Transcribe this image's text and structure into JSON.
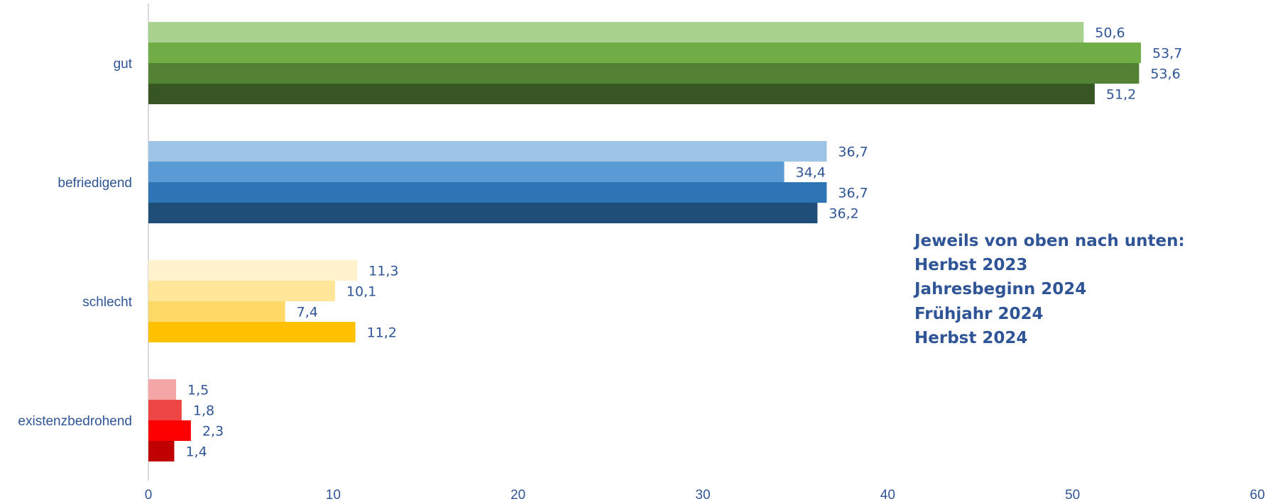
{
  "chart_data": {
    "type": "bar",
    "orientation": "horizontal",
    "categories": [
      "gut",
      "befriedigend",
      "schlecht",
      "existenzbedrohend"
    ],
    "series": [
      {
        "name": "Herbst 2023",
        "values": [
          50.6,
          36.7,
          11.3,
          1.5
        ]
      },
      {
        "name": "Jahresbeginn 2024",
        "values": [
          53.7,
          34.4,
          10.1,
          1.8
        ]
      },
      {
        "name": "Frühjahr 2024",
        "values": [
          53.6,
          36.7,
          7.4,
          2.3
        ]
      },
      {
        "name": "Herbst 2024",
        "values": [
          51.2,
          36.2,
          11.2,
          1.4
        ]
      }
    ],
    "value_labels": [
      [
        "50,6",
        "53,7",
        "53,6",
        "51,2"
      ],
      [
        "36,7",
        "34,4",
        "36,7",
        "36,2"
      ],
      [
        "11,3",
        "10,1",
        "7,4",
        "11,2"
      ],
      [
        "1,5",
        "1,8",
        "2,3",
        "1,4"
      ]
    ],
    "colors": [
      [
        "#A9D18E",
        "#70AD47",
        "#548235",
        "#375623"
      ],
      [
        "#9DC3E6",
        "#5B9BD5",
        "#2E75B6",
        "#1F4E79"
      ],
      [
        "#FFF2CC",
        "#FFE699",
        "#FFD966",
        "#FFC000"
      ],
      [
        "#F4A6A6",
        "#EE4646",
        "#FF0000",
        "#C00000"
      ]
    ],
    "xlim": [
      0,
      60
    ],
    "x_ticks": [
      "0",
      "10",
      "20",
      "30",
      "40",
      "50",
      "60"
    ],
    "title": "",
    "xlabel": "",
    "ylabel": "",
    "grid": false,
    "legend_text": {
      "heading": "Jeweils von oben nach unten:",
      "items": [
        "Herbst 2023",
        "Jahresbeginn 2024",
        "Frühjahr 2024",
        "Herbst 2024"
      ],
      "placement": "right-middle"
    }
  }
}
